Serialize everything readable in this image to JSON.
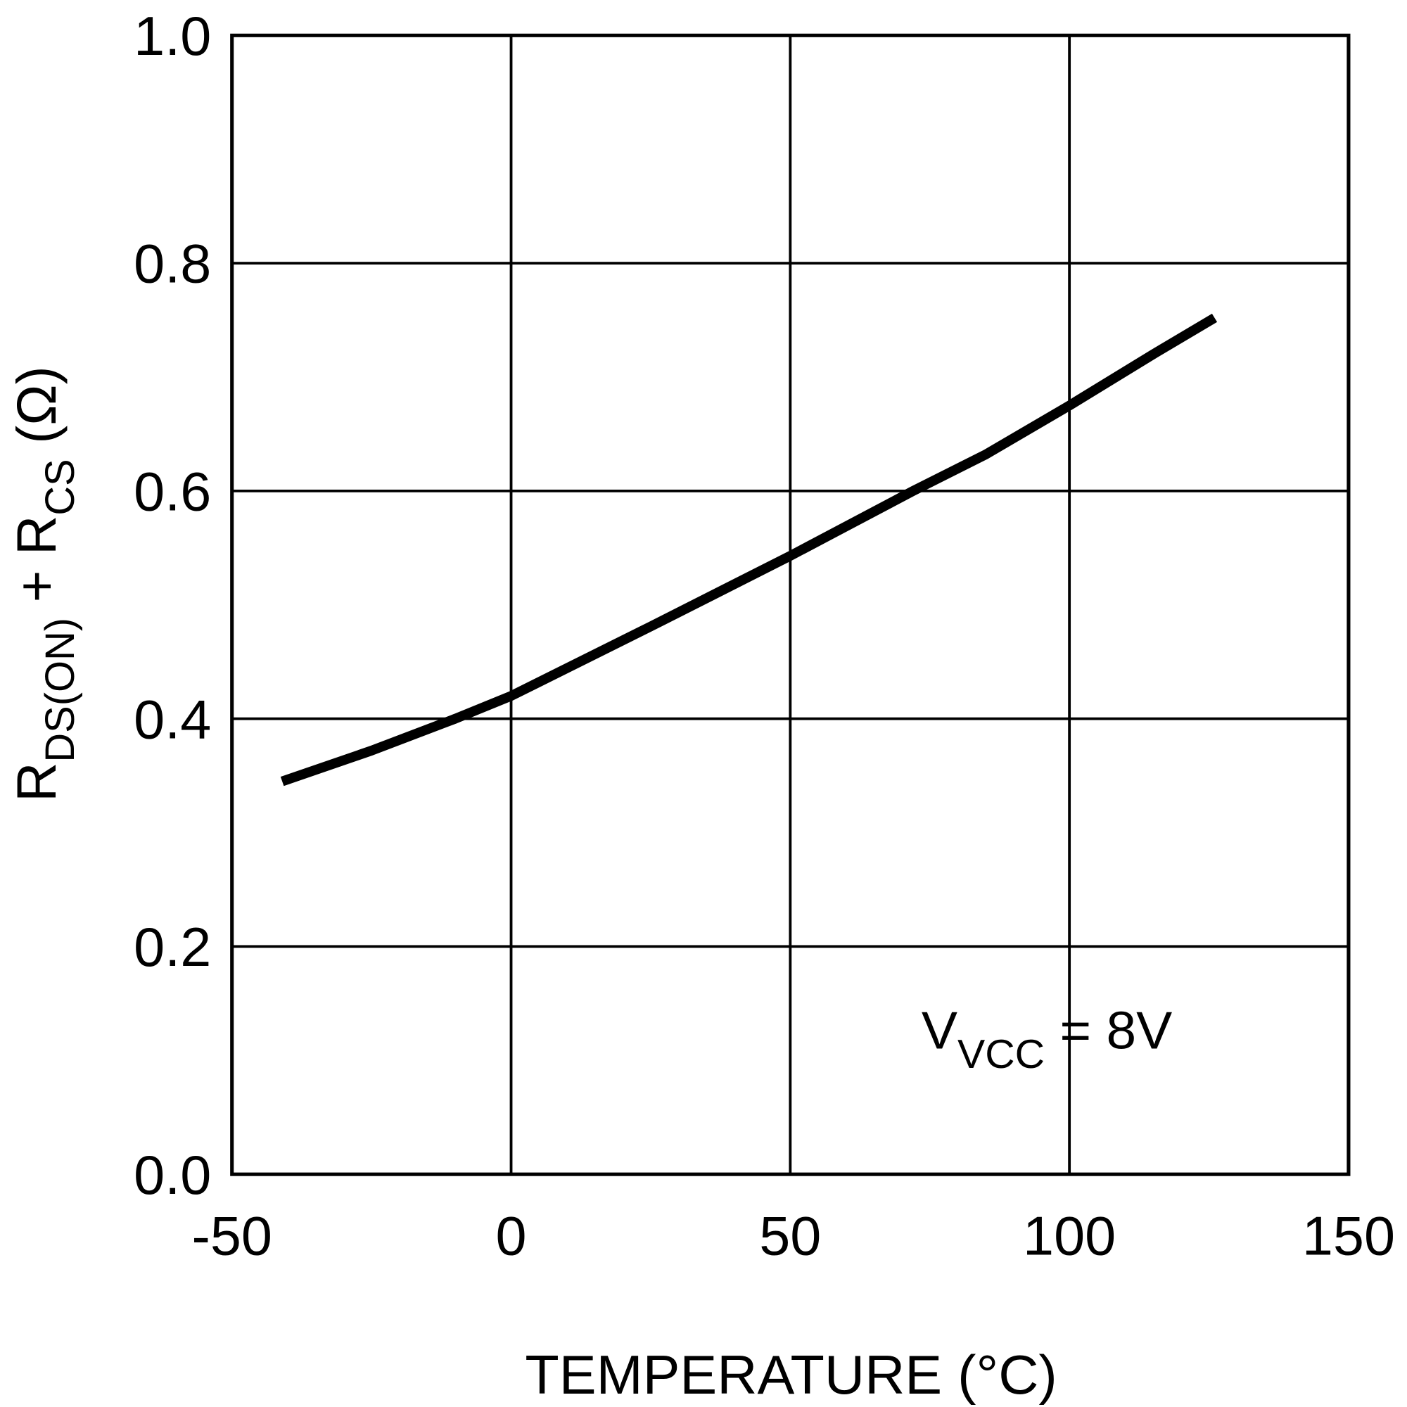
{
  "chart_data": {
    "type": "line",
    "title": "",
    "xlabel": "TEMPERATURE (°C)",
    "ylabel_main": "R",
    "ylabel_sub1": "DS(ON)",
    "ylabel_mid": " + R",
    "ylabel_sub2": "CS",
    "ylabel_unit": " (Ω)",
    "xlim": [
      -50,
      150
    ],
    "ylim": [
      0,
      1.0
    ],
    "grid": true,
    "xticks": [
      -50,
      0,
      50,
      100,
      150
    ],
    "xtick_labels": [
      "-50",
      "0",
      "50",
      "100",
      "150"
    ],
    "yticks": [
      0,
      0.2,
      0.4,
      0.6,
      0.8,
      1.0
    ],
    "ytick_labels": [
      "0.0",
      "0.2",
      "0.4",
      "0.6",
      "0.8",
      "1.0"
    ],
    "annotation": {
      "main": "V",
      "sub": "VCC",
      "rest": " = 8V"
    },
    "series": [
      {
        "color": "#000000",
        "x": [
          -41,
          -25,
          -10,
          0,
          25,
          50,
          72,
          85,
          100,
          115,
          126
        ],
        "y": [
          0.345,
          0.372,
          0.4,
          0.42,
          0.481,
          0.543,
          0.6,
          0.632,
          0.675,
          0.72,
          0.752
        ]
      }
    ]
  }
}
